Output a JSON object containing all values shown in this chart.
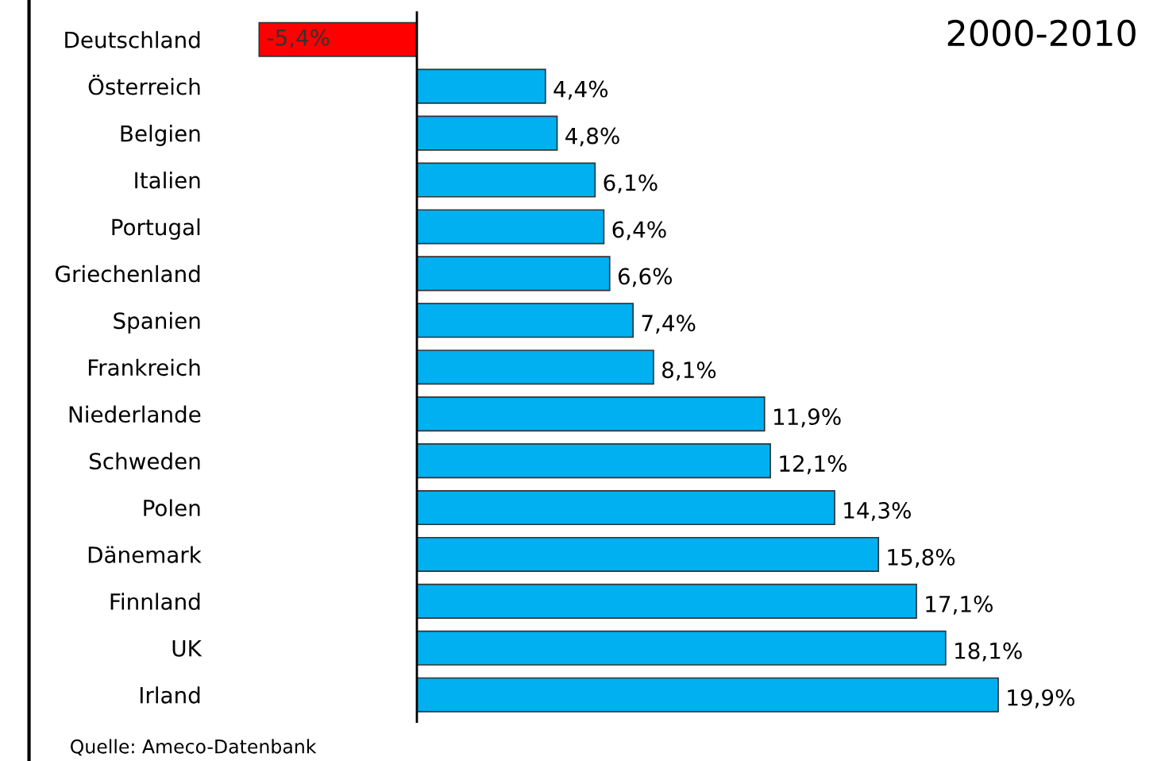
{
  "chart_data": {
    "type": "bar",
    "orientation": "horizontal",
    "title": "2000-2010",
    "categories": [
      "Deutschland",
      "Österreich",
      "Belgien",
      "Italien",
      "Portugal",
      "Griechenland",
      "Spanien",
      "Frankreich",
      "Niederlande",
      "Schweden",
      "Polen",
      "Dänemark",
      "Finnland",
      "UK",
      "Irland"
    ],
    "values": [
      -5.4,
      4.4,
      4.8,
      6.1,
      6.4,
      6.6,
      7.4,
      8.1,
      11.9,
      12.1,
      14.3,
      15.8,
      17.1,
      18.1,
      19.9
    ],
    "colors": [
      "#ff0000",
      "#00b0f0",
      "#00b0f0",
      "#00b0f0",
      "#00b0f0",
      "#00b0f0",
      "#00b0f0",
      "#00b0f0",
      "#00b0f0",
      "#00b0f0",
      "#00b0f0",
      "#00b0f0",
      "#00b0f0",
      "#00b0f0",
      "#00b0f0"
    ],
    "value_labels": [
      "-5,4%",
      "4,4%",
      "4,8%",
      "6,1%",
      "6,4%",
      "6,6%",
      "7,4%",
      "8,1%",
      "11,9%",
      "12,1%",
      "14,3%",
      "15,8%",
      "17,1%",
      "18,1%",
      "19,9%"
    ],
    "tick_labels": "y",
    "grid": false,
    "annotations": [
      "Quelle: Ameco-Datenbank"
    ]
  }
}
